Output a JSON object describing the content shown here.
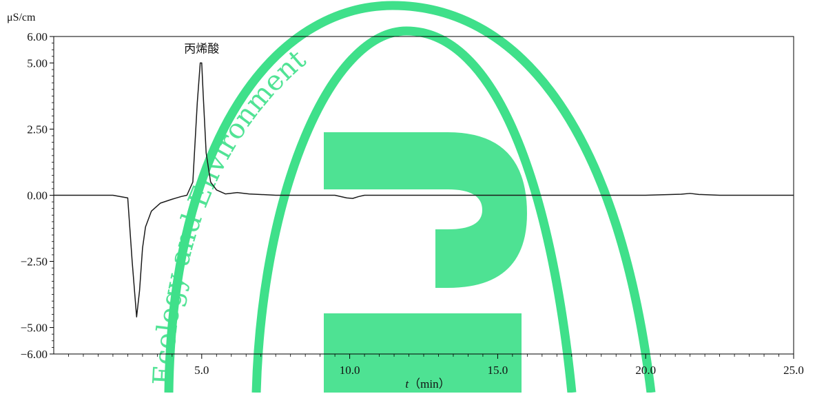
{
  "chart_data": {
    "type": "line",
    "title": "",
    "ylabel_unit": "μS/cm",
    "xlabel_var": "t",
    "xlabel_unit": "（min）",
    "xlim": [
      0,
      25
    ],
    "ylim": [
      -6,
      6
    ],
    "x_ticks": [
      {
        "value": 5,
        "label": "5.0"
      },
      {
        "value": 10,
        "label": "10.0"
      },
      {
        "value": 15,
        "label": "15.0"
      },
      {
        "value": 20,
        "label": "20.0"
      },
      {
        "value": 25,
        "label": "25.0"
      }
    ],
    "y_ticks": [
      {
        "value": 6,
        "label": "6.00"
      },
      {
        "value": 5,
        "label": "5.00"
      },
      {
        "value": 2.5,
        "label": "2.50"
      },
      {
        "value": 0,
        "label": "0.00"
      },
      {
        "value": -2.5,
        "label": "−2.50"
      },
      {
        "value": -5,
        "label": "−5.00"
      },
      {
        "value": -6,
        "label": "−6.00"
      }
    ],
    "grid": false,
    "series": [
      {
        "x": [
          0,
          1,
          2,
          2.5,
          2.65,
          2.8,
          2.9,
          3.0,
          3.1,
          3.3,
          3.6,
          4.0,
          4.3,
          4.5,
          4.7,
          4.85,
          4.95,
          5.0,
          5.05,
          5.15,
          5.3,
          5.5,
          5.8,
          6.2,
          6.6,
          7.5,
          9.5,
          9.9,
          10.1,
          10.3,
          10.5,
          12,
          15,
          20,
          21.2,
          21.5,
          21.8,
          22.5,
          25
        ],
        "y": [
          0,
          0,
          0,
          -0.1,
          -2.5,
          -4.6,
          -3.6,
          -2.0,
          -1.2,
          -0.6,
          -0.3,
          -0.15,
          -0.05,
          0,
          0.5,
          3.5,
          5.0,
          5.0,
          3.8,
          1.6,
          0.5,
          0.2,
          0.05,
          0.1,
          0.05,
          0,
          0,
          -0.1,
          -0.12,
          -0.05,
          0,
          0,
          0,
          0,
          0.04,
          0.07,
          0.03,
          0,
          0
        ]
      }
    ],
    "annotations": [
      {
        "text": "丙烯酸",
        "x": 5.0,
        "y": 5.0
      }
    ]
  },
  "watermark": {
    "text": "Ecology and Environment",
    "color": "#3fe08a"
  }
}
